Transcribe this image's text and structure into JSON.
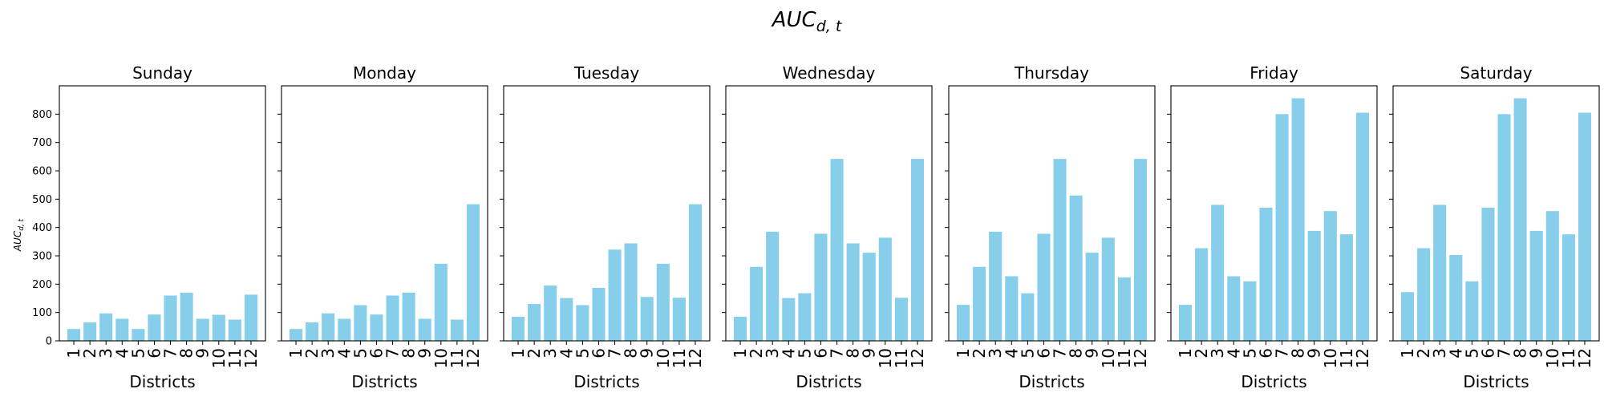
{
  "chart_data": {
    "type": "bar",
    "title": "AUC",
    "title_subscript": "d, t",
    "ylabel": "AUC",
    "ylabel_subscript": "d, t",
    "xlabel": "Districts",
    "ylim": [
      0,
      900
    ],
    "yticks": [
      0,
      100,
      200,
      300,
      400,
      500,
      600,
      700,
      800
    ],
    "categories": [
      "1",
      "2",
      "3",
      "4",
      "5",
      "6",
      "7",
      "8",
      "9",
      "10",
      "11",
      "12"
    ],
    "bar_color": "#87ceeb",
    "shared_y_axis": true,
    "panels": [
      {
        "name": "Sunday",
        "values": [
          42,
          65,
          97,
          78,
          42,
          93,
          160,
          170,
          78,
          92,
          75,
          163
        ]
      },
      {
        "name": "Monday",
        "values": [
          42,
          65,
          97,
          78,
          126,
          93,
          160,
          170,
          78,
          272,
          75,
          482
        ]
      },
      {
        "name": "Tuesday",
        "values": [
          85,
          130,
          195,
          151,
          126,
          187,
          322,
          344,
          155,
          272,
          152,
          482
        ]
      },
      {
        "name": "Wednesday",
        "values": [
          85,
          261,
          385,
          151,
          168,
          378,
          642,
          344,
          311,
          364,
          152,
          642
        ]
      },
      {
        "name": "Thursday",
        "values": [
          127,
          261,
          385,
          228,
          168,
          378,
          642,
          513,
          311,
          364,
          224,
          642
        ]
      },
      {
        "name": "Friday",
        "values": [
          127,
          327,
          480,
          228,
          210,
          470,
          800,
          856,
          388,
          458,
          376,
          805
        ]
      },
      {
        "name": "Saturday",
        "values": [
          172,
          327,
          480,
          303,
          210,
          470,
          800,
          856,
          388,
          458,
          376,
          805
        ]
      }
    ]
  }
}
